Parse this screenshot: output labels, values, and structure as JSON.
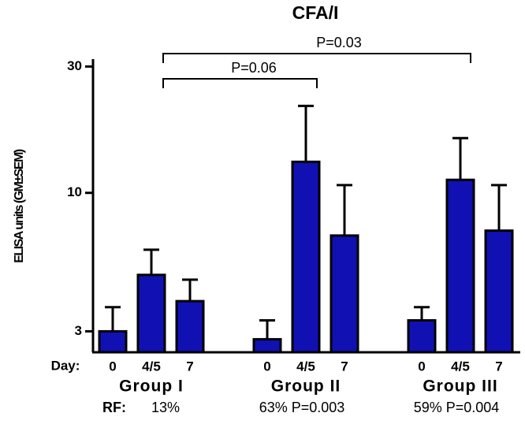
{
  "chart_data": {
    "type": "bar",
    "title": "CFA/I",
    "y_label": "ELISA units (GM±SEM)",
    "categories": [
      "0",
      "4/5",
      "7",
      "0",
      "4/5",
      "7",
      "0",
      "4/5",
      "7"
    ],
    "category_prefix": "Day:",
    "groups": [
      "Group I",
      "Group II",
      "Group III"
    ],
    "rf_prefix": "RF:",
    "rf_labels": [
      "13%",
      "63% P=0.003",
      "59% P=0.004"
    ],
    "series": [
      {
        "color": "#1111b3",
        "values": [
          3.0,
          4.9,
          3.9,
          2.8,
          13.1,
          6.9,
          3.3,
          11.2,
          7.2
        ],
        "errors": [
          0.7,
          1.2,
          0.8,
          0.5,
          8.2,
          3.8,
          0.4,
          4.9,
          3.5
        ]
      }
    ],
    "annotations": [
      "P=0.06",
      "P=0.03"
    ],
    "log_y": true,
    "ylim": [
      2.5,
      32
    ],
    "yticks": [
      3,
      10,
      30
    ]
  }
}
